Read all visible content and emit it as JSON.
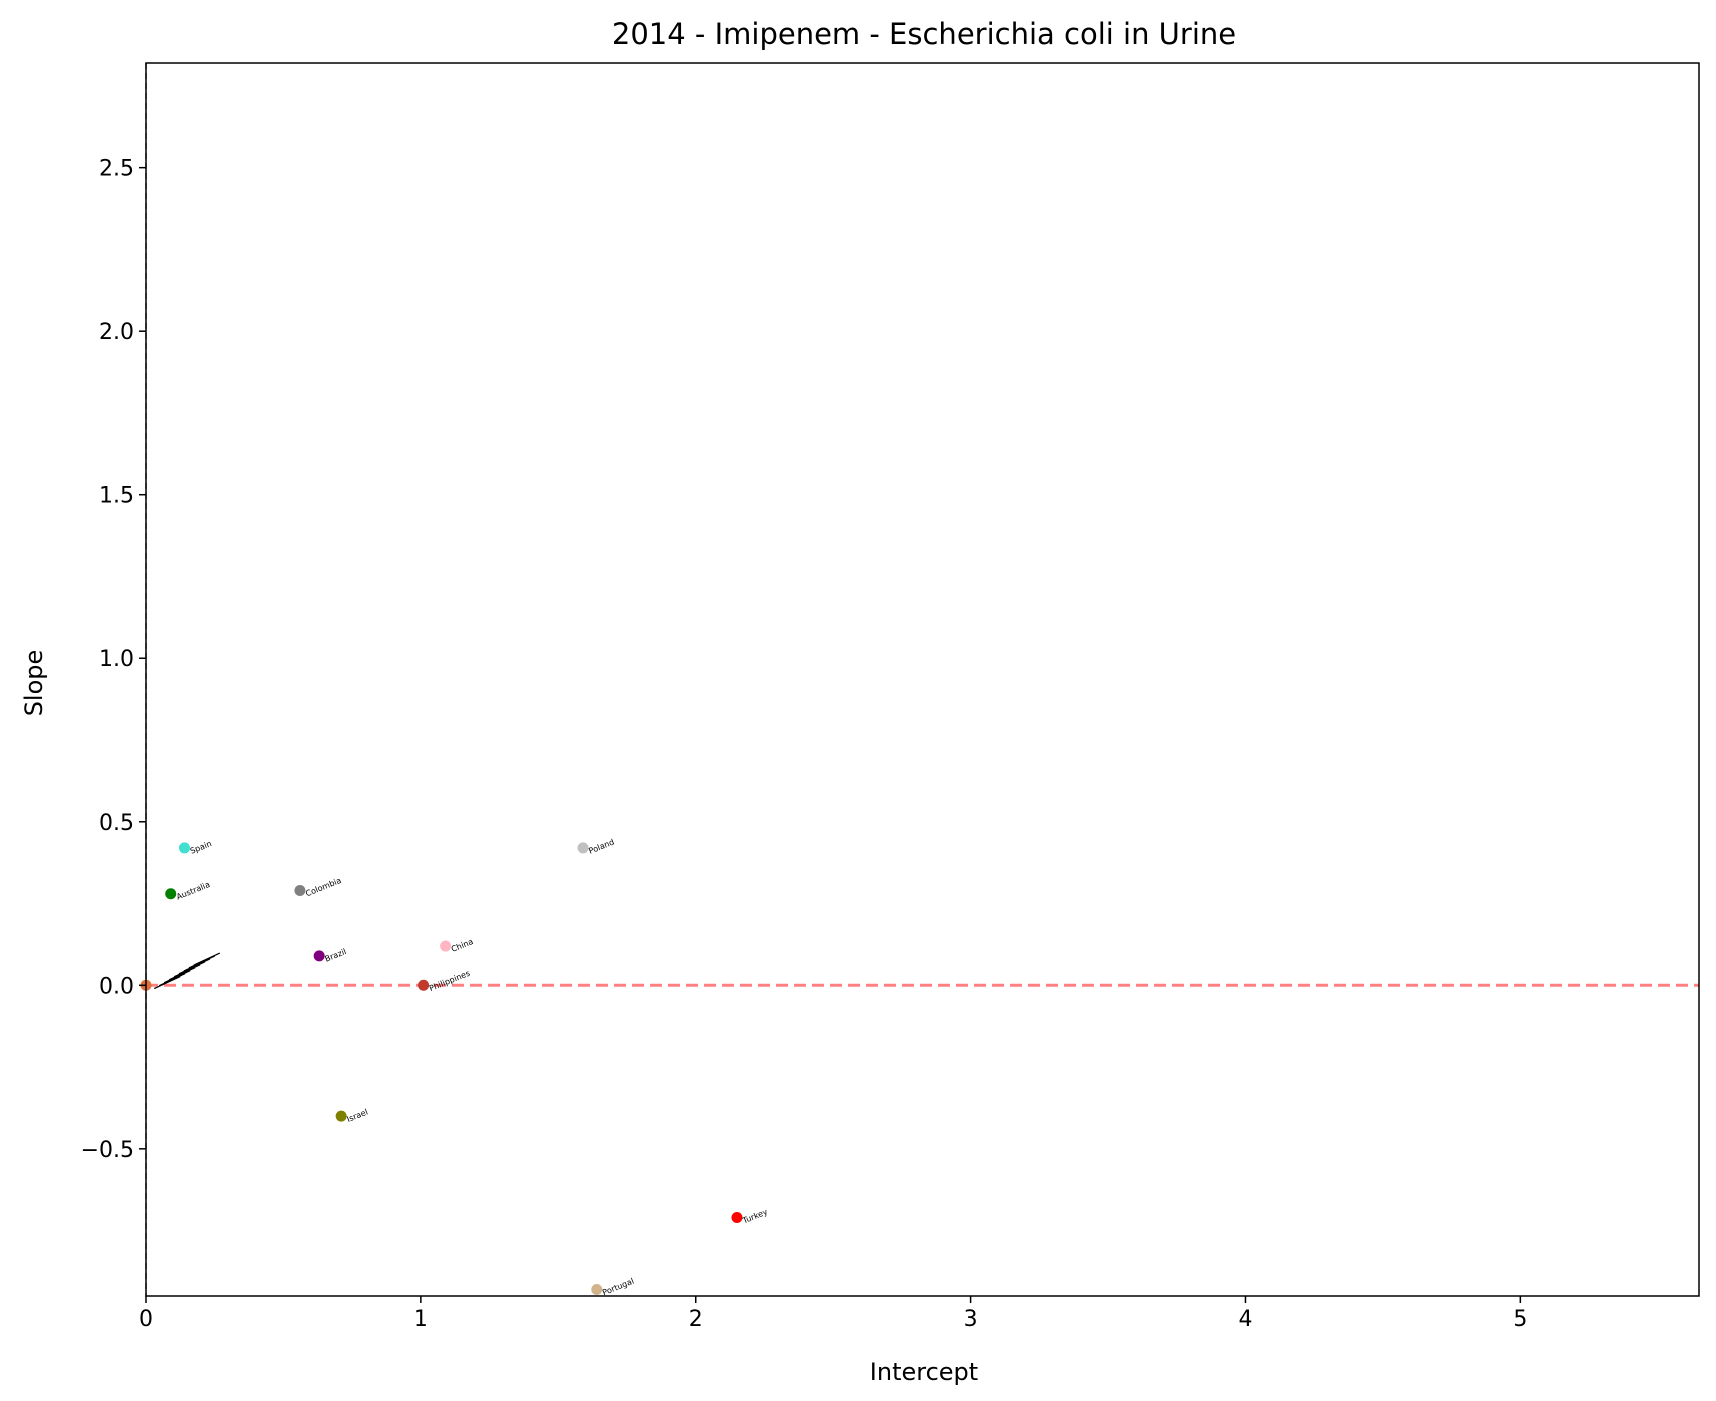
{
  "chart_data": {
    "type": "scatter",
    "title": "2014 - Imipenem - Escherichia coli in Urine",
    "xlabel": "Intercept",
    "ylabel": "Slope",
    "xlim": [
      0,
      5.65
    ],
    "ylim": [
      -0.95,
      2.82
    ],
    "xticks": [
      0,
      1,
      2,
      3,
      4,
      5
    ],
    "yticks": [
      -0.5,
      0.0,
      0.5,
      1.0,
      1.5,
      2.0,
      2.5
    ],
    "ytick_labels": [
      "−0.5",
      "0.0",
      "0.5",
      "1.0",
      "1.5",
      "2.0",
      "2.5"
    ],
    "reference_lines": [
      {
        "orientation": "horizontal",
        "value": 0,
        "color": "#ff8080",
        "style": "dashed"
      },
      {
        "orientation": "vertical",
        "value": 0,
        "color": "#2e6b2e",
        "style": "dashed"
      }
    ],
    "points": [
      {
        "label": "Spain",
        "x": 0.14,
        "y": 0.42,
        "color": "#40e0d0"
      },
      {
        "label": "Australia",
        "x": 0.09,
        "y": 0.28,
        "color": "#008000"
      },
      {
        "label": "Colombia",
        "x": 0.56,
        "y": 0.29,
        "color": "#808080"
      },
      {
        "label": "Poland",
        "x": 1.59,
        "y": 0.42,
        "color": "#c0c0c0"
      },
      {
        "label": "China",
        "x": 1.09,
        "y": 0.12,
        "color": "#ffb6c1"
      },
      {
        "label": "Brazil",
        "x": 0.63,
        "y": 0.09,
        "color": "#800080"
      },
      {
        "label": "Philippines",
        "x": 1.01,
        "y": 0.0,
        "color": "#c0392b"
      },
      {
        "label": "Israel",
        "x": 0.71,
        "y": -0.4,
        "color": "#808000"
      },
      {
        "label": "Turkey",
        "x": 2.15,
        "y": -0.71,
        "color": "#ff0000"
      },
      {
        "label": "Portugal",
        "x": 1.64,
        "y": -0.93,
        "color": "#d2b48c"
      },
      {
        "label": "",
        "x": 0.0,
        "y": 0.0,
        "color": "#e0703a"
      }
    ]
  }
}
